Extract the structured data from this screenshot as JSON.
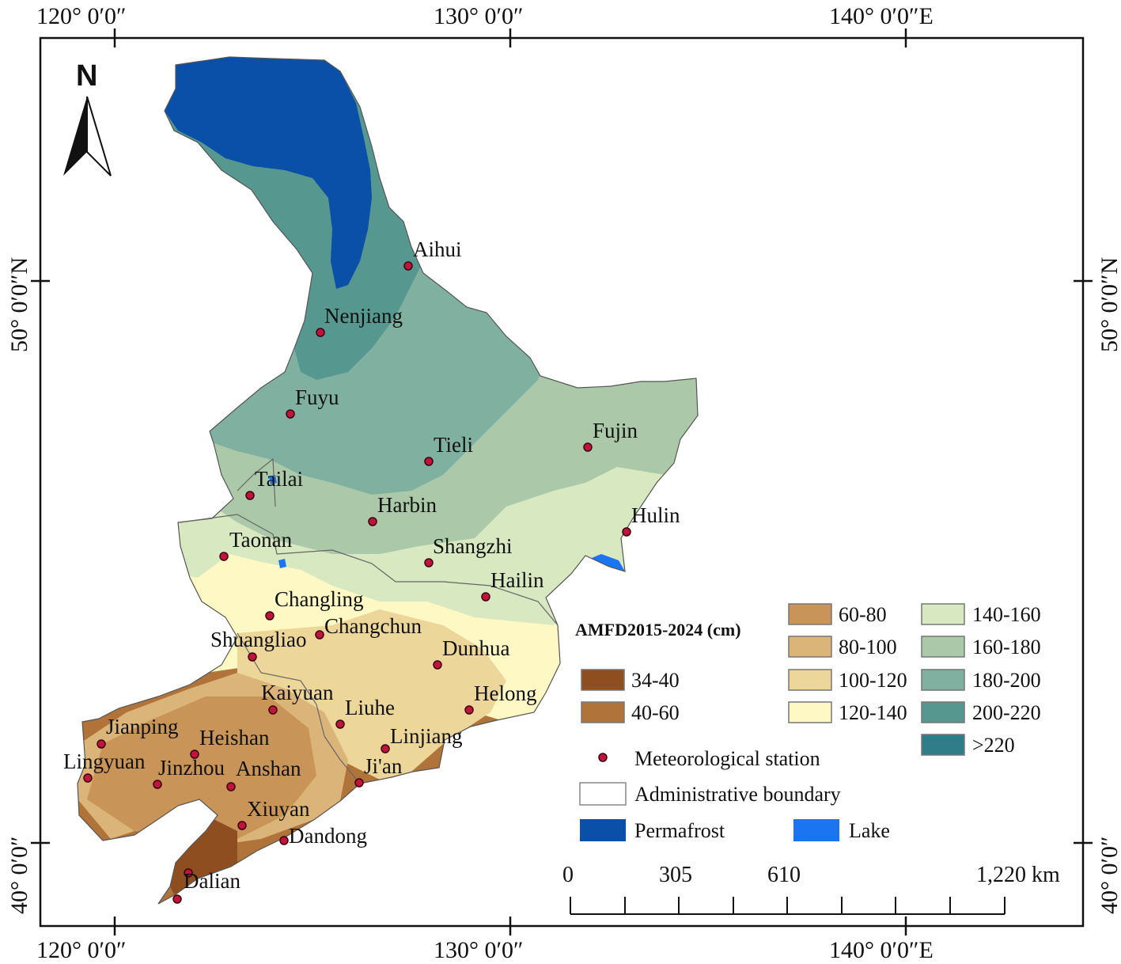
{
  "map": {
    "north_label": "N",
    "top_coords": [
      "120° 0′0″",
      "130° 0′0″",
      "140° 0′0″E"
    ],
    "bottom_coords": [
      "120° 0′0″",
      "130° 0′0″",
      "140° 0′0″E"
    ],
    "left_coords": [
      "50° 0′0″N",
      "40° 0′0″"
    ],
    "right_coords": [
      "50° 0′0″N",
      "40° 0′0″"
    ],
    "stations": [
      {
        "name": "Aihui"
      },
      {
        "name": "Nenjiang"
      },
      {
        "name": "Fuyu"
      },
      {
        "name": "Tieli"
      },
      {
        "name": "Fujin"
      },
      {
        "name": "Tailai"
      },
      {
        "name": "Harbin"
      },
      {
        "name": "Hulin"
      },
      {
        "name": "Taonan"
      },
      {
        "name": "Shangzhi"
      },
      {
        "name": "Hailin"
      },
      {
        "name": "Changling"
      },
      {
        "name": "Changchun"
      },
      {
        "name": "Shuangliao"
      },
      {
        "name": "Dunhua"
      },
      {
        "name": "Kaiyuan"
      },
      {
        "name": "Liuhe"
      },
      {
        "name": "Helong"
      },
      {
        "name": "Jianping"
      },
      {
        "name": "Heishan"
      },
      {
        "name": "Linjiang"
      },
      {
        "name": "Lingyuan"
      },
      {
        "name": "Jinzhou"
      },
      {
        "name": "Anshan"
      },
      {
        "name": "Ji'an"
      },
      {
        "name": "Xiuyan"
      },
      {
        "name": "Dandong"
      },
      {
        "name": "Dalian"
      }
    ]
  },
  "legend": {
    "title": "AMFD2015-2024 (cm)",
    "classes": [
      {
        "label": "34-40",
        "color": "#8f4e1f"
      },
      {
        "label": "40-60",
        "color": "#b0743a"
      },
      {
        "label": "60-80",
        "color": "#c89458"
      },
      {
        "label": "80-100",
        "color": "#dbb47a"
      },
      {
        "label": "100-120",
        "color": "#ecd699"
      },
      {
        "label": "120-140",
        "color": "#fdf8c4"
      },
      {
        "label": "140-160",
        "color": "#d8e8c0"
      },
      {
        "label": "160-180",
        "color": "#abc9a8"
      },
      {
        "label": "180-200",
        "color": "#7fb0a0"
      },
      {
        "label": "200-220",
        "color": "#56978f"
      },
      {
        "label": ">220",
        "color": "#2f7d88"
      }
    ],
    "station_label": "Meteorological station",
    "boundary_label": "Administrative boundary",
    "permafrost_label": "Permafrost",
    "permafrost_color": "#0a4fa8",
    "lake_label": "Lake",
    "lake_color": "#1b74f0",
    "station_color": "#c0143c"
  },
  "scale": {
    "labels": [
      "0",
      "305",
      "610",
      "1,220 km"
    ]
  }
}
